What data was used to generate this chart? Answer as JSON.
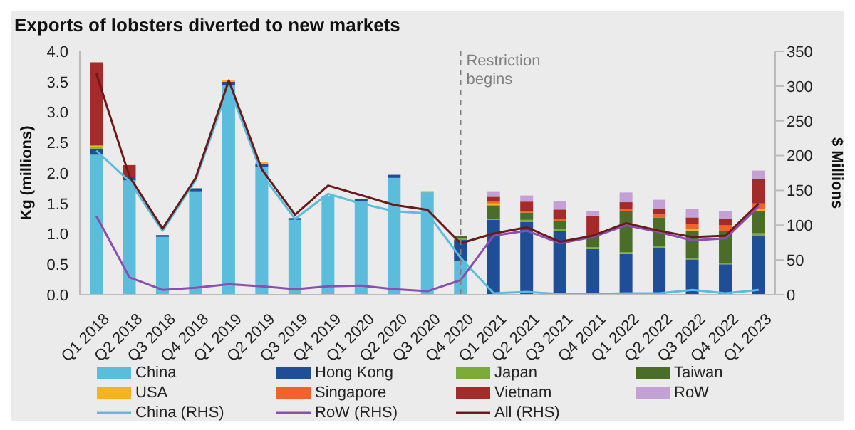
{
  "chart_data": {
    "type": "bar",
    "title": "Exports of lobsters diverted to new markets",
    "categories": [
      "Q1 2018",
      "Q2 2018",
      "Q3 2018",
      "Q4 2018",
      "Q1 2019",
      "Q2 2019",
      "Q3 2019",
      "Q4 2019",
      "Q1 2020",
      "Q2 2020",
      "Q3 2020",
      "Q4 2020",
      "Q1 2021",
      "Q2 2021",
      "Q3 2021",
      "Q4 2021",
      "Q1 2022",
      "Q2 2022",
      "Q3 2022",
      "Q4 2022",
      "Q1 2023"
    ],
    "stacked": true,
    "series": [
      {
        "name": "China",
        "color": "#5bbcdc",
        "values": [
          2.3,
          1.88,
          0.95,
          1.7,
          3.45,
          2.1,
          1.23,
          1.62,
          1.53,
          1.92,
          1.68,
          0.55,
          0,
          0,
          0,
          0,
          0,
          0,
          0,
          0,
          0
        ]
      },
      {
        "name": "Hong Kong",
        "color": "#1f4e96",
        "values": [
          0.1,
          0.05,
          0.03,
          0.05,
          0.05,
          0.05,
          0.03,
          null,
          0.04,
          0.05,
          0,
          0.35,
          1.23,
          1.2,
          1.05,
          0.75,
          0.67,
          0.77,
          0.58,
          0.5,
          0.97
        ]
      },
      {
        "name": "Japan",
        "color": "#7cab3a",
        "values": [
          0.02,
          0,
          0,
          0,
          0,
          0,
          0,
          0,
          0,
          0,
          0.02,
          0.02,
          0.02,
          0.03,
          0.03,
          0.03,
          0.03,
          0.03,
          0.02,
          0.02,
          0.04
        ]
      },
      {
        "name": "Taiwan",
        "color": "#4a6e2a",
        "values": [
          0,
          0,
          0,
          0,
          0,
          0,
          0,
          0,
          0,
          0,
          0,
          0.05,
          0.22,
          0.12,
          0.13,
          0.19,
          0.67,
          0.47,
          0.45,
          0.53,
          0.36
        ]
      },
      {
        "name": "USA",
        "color": "#f5b323",
        "values": [
          0.03,
          0,
          0,
          0,
          0.02,
          0.03,
          0,
          0,
          0,
          0,
          0,
          0,
          0.03,
          0,
          0,
          0,
          0,
          0,
          0.03,
          null,
          0.04
        ]
      },
      {
        "name": "Singapore",
        "color": "#f0632b",
        "values": [
          0,
          0,
          0,
          0,
          0,
          0,
          0,
          0,
          0,
          0,
          0,
          0,
          0.03,
          0.03,
          0.04,
          null,
          0.04,
          0.05,
          0.08,
          0.09,
          0.09
        ]
      },
      {
        "name": "Vietnam",
        "color": "#a52a2a",
        "values": [
          1.37,
          0.2,
          0,
          0,
          0,
          0,
          0,
          0,
          0,
          0,
          0,
          0,
          0.08,
          0.15,
          0.15,
          0.33,
          0.11,
          0.09,
          0.11,
          0.11,
          0.4
        ]
      },
      {
        "name": "RoW",
        "color": "#c3a0d6",
        "values": [
          0,
          0,
          0,
          0,
          0,
          0,
          0,
          0,
          0,
          0,
          0,
          0,
          0.09,
          0.1,
          0.14,
          0.07,
          0.16,
          0.15,
          0.14,
          0.12,
          0.14
        ]
      },
      {
        "name": "China (RHS)",
        "type": "line",
        "axis": "y2",
        "color": "#5bbcdc",
        "values": [
          207,
          163,
          92,
          165,
          300,
          173,
          109,
          145,
          131,
          120,
          117,
          53,
          2,
          4,
          1,
          1,
          2,
          2,
          7,
          2,
          7
        ]
      },
      {
        "name": "RoW (RHS)",
        "type": "line",
        "axis": "y2",
        "color": "#8a4fb0",
        "values": [
          113,
          25,
          7,
          10,
          15,
          12,
          8,
          12,
          13,
          8,
          5,
          21,
          85,
          92,
          74,
          83,
          100,
          90,
          78,
          81,
          127
        ]
      },
      {
        "name": "All (RHS)",
        "type": "line",
        "axis": "y2",
        "color": "#6b1a1a",
        "values": [
          318,
          170,
          95,
          168,
          308,
          180,
          115,
          157,
          143,
          129,
          122,
          74,
          88,
          97,
          76,
          85,
          103,
          92,
          83,
          85,
          131
        ]
      }
    ],
    "ylabel": "Kg (millions)",
    "y2label": "$ Millions",
    "ylim": [
      0,
      4
    ],
    "yticks": [
      {
        "value": 0,
        "label": "0.0"
      },
      0.5,
      {
        "value": 1,
        "label": "1.0"
      },
      1.5,
      {
        "value": 2,
        "label": "2.0"
      },
      2.5,
      {
        "value": 3,
        "label": "3.0"
      },
      3.5,
      {
        "value": 4,
        "label": "4.0"
      }
    ],
    "y2lim": [
      0,
      350
    ],
    "y2ticks": [
      0,
      50,
      100,
      150,
      200,
      250,
      300,
      350
    ],
    "ref_lines": [
      {
        "axis": "x",
        "value": "Q4 2020",
        "label": "Restriction begins",
        "color": "#808080",
        "line_style": "dashed"
      }
    ],
    "legend": "bottom",
    "marker": "none",
    "line_style": "solid"
  }
}
